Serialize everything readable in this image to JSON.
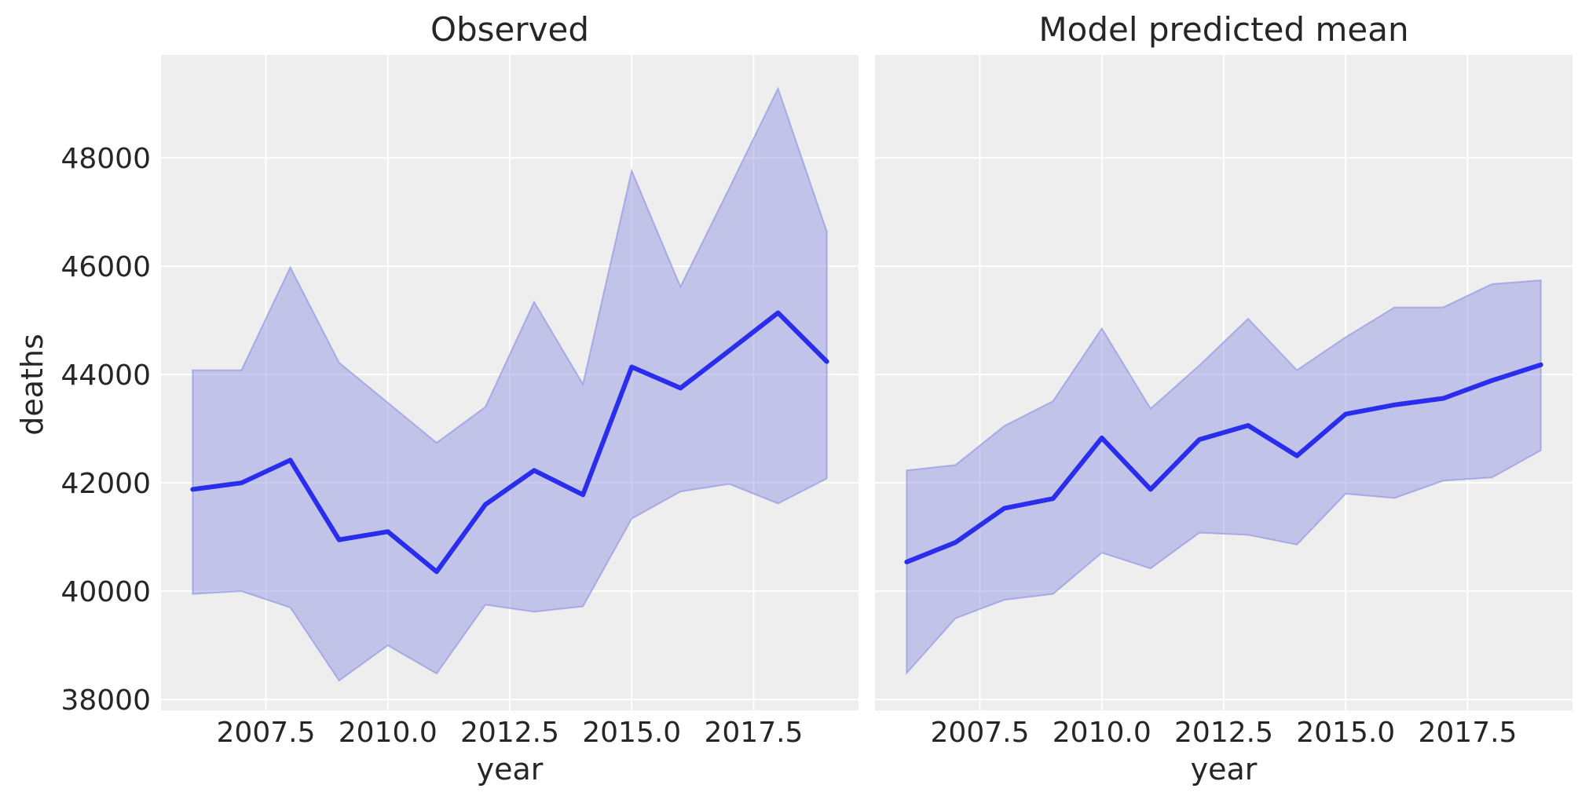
{
  "chart_data": [
    {
      "type": "line",
      "title": "Observed",
      "xlabel": "year",
      "ylabel": "deaths",
      "xlim": [
        2005.35,
        2019.65
      ],
      "ylim": [
        37800,
        49900
      ],
      "xticks": [
        2007.5,
        2010.0,
        2012.5,
        2015.0,
        2017.5
      ],
      "xtick_labels": [
        "2007.5",
        "2010.0",
        "2012.5",
        "2015.0",
        "2017.5"
      ],
      "yticks": [
        38000,
        40000,
        42000,
        44000,
        46000,
        48000
      ],
      "ytick_labels": [
        "38000",
        "40000",
        "42000",
        "44000",
        "46000",
        "48000"
      ],
      "x": [
        2006,
        2007,
        2008,
        2009,
        2010,
        2011,
        2012,
        2013,
        2014,
        2015,
        2016,
        2017,
        2018,
        2019
      ],
      "series": [
        {
          "values": [
            41880,
            42000,
            42420,
            40950,
            41100,
            40360,
            41600,
            42230,
            41780,
            44140,
            43750,
            44440,
            45140,
            44240
          ],
          "lower": [
            39950,
            40000,
            39700,
            38350,
            39000,
            38480,
            39750,
            39620,
            39720,
            41340,
            41840,
            41980,
            41620,
            42080
          ],
          "upper": [
            44080,
            44080,
            45980,
            44220,
            43480,
            42740,
            43400,
            45340,
            43820,
            47760,
            45620,
            47440,
            49280,
            46640
          ]
        }
      ],
      "grid": true
    },
    {
      "type": "line",
      "title": "Model predicted mean",
      "xlabel": "year",
      "xlim": [
        2005.35,
        2019.65
      ],
      "ylim": [
        37800,
        49900
      ],
      "xticks": [
        2007.5,
        2010.0,
        2012.5,
        2015.0,
        2017.5
      ],
      "xtick_labels": [
        "2007.5",
        "2010.0",
        "2012.5",
        "2015.0",
        "2017.5"
      ],
      "x": [
        2006,
        2007,
        2008,
        2009,
        2010,
        2011,
        2012,
        2013,
        2014,
        2015,
        2016,
        2017,
        2018,
        2019
      ],
      "series": [
        {
          "values": [
            40540,
            40900,
            41530,
            41710,
            42830,
            41880,
            42800,
            43060,
            42500,
            43270,
            43440,
            43560,
            43890,
            44180
          ],
          "lower": [
            38490,
            39500,
            39840,
            39950,
            40710,
            40420,
            41080,
            41040,
            40860,
            41800,
            41720,
            42040,
            42100,
            42600
          ],
          "upper": [
            42230,
            42330,
            43050,
            43510,
            44850,
            43370,
            44170,
            45030,
            44080,
            44690,
            45240,
            45240,
            45670,
            45740
          ]
        }
      ],
      "grid": true
    }
  ],
  "colors": {
    "panel_bg": "#eeeeee",
    "grid": "#ffffff",
    "line": "#2a2eec",
    "band": "#8a8de0",
    "text": "#262626"
  }
}
